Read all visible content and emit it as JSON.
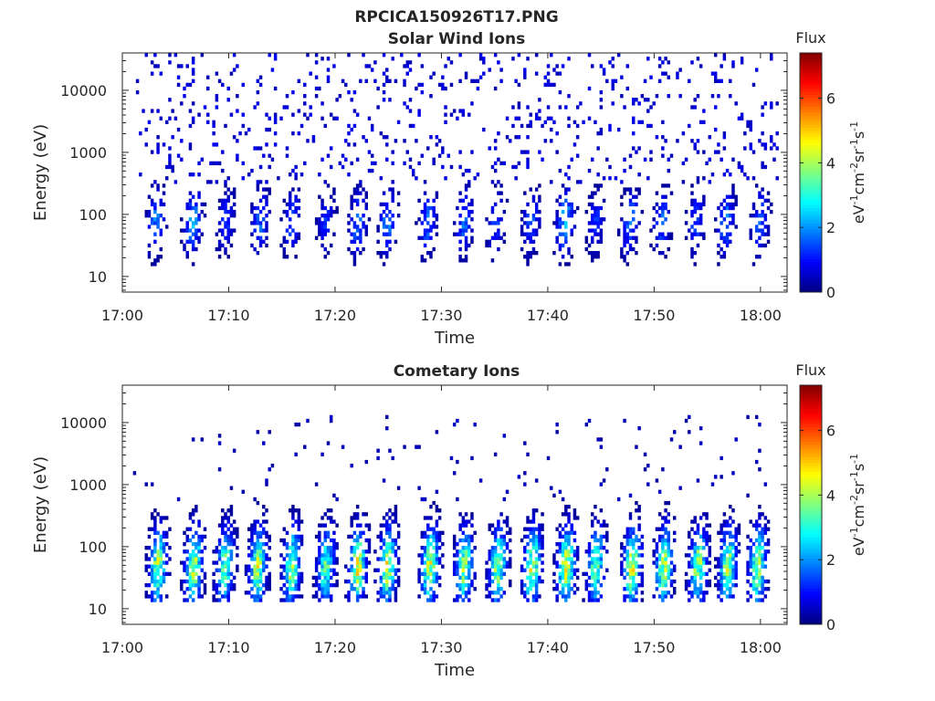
{
  "figure_title": "RPCICA150926T17.PNG",
  "chart_data": [
    {
      "type": "heatmap",
      "title": "Solar Wind Ions",
      "xlabel": "Time",
      "ylabel": "Energy (eV)",
      "xtick_labels": [
        "17:00",
        "17:10",
        "17:20",
        "17:30",
        "17:40",
        "17:50",
        "18:00"
      ],
      "xtick_minutes": [
        0,
        10,
        20,
        30,
        40,
        50,
        60
      ],
      "xlim_minutes": [
        0,
        62.5
      ],
      "ytick_labels": [
        "10",
        "100",
        "1000",
        "10000"
      ],
      "ytick_values": [
        10,
        100,
        1000,
        10000
      ],
      "ylim": [
        5.6,
        40000
      ],
      "yscale": "log",
      "colorbar": {
        "title": "Flux",
        "label": "eV-1cm-2sr-1s-1",
        "label_parts": [
          "eV",
          "-1",
          "cm",
          "-2",
          "sr",
          "-1",
          "s",
          "-1"
        ],
        "tick_labels": [
          "0",
          "2",
          "4",
          "6"
        ],
        "tick_values": [
          0,
          2,
          4,
          6
        ],
        "range": [
          0,
          7.4
        ],
        "colormap": "jet"
      },
      "data_window_minutes": [
        1.0,
        61.7
      ],
      "bursts": [
        {
          "t": 3.0,
          "flux": 2.2
        },
        {
          "t": 6.5,
          "flux": 2.6
        },
        {
          "t": 9.6,
          "flux": 1.6
        },
        {
          "t": 12.8,
          "flux": 2.0
        },
        {
          "t": 15.8,
          "flux": 1.8
        },
        {
          "t": 19.0,
          "flux": 1.5
        },
        {
          "t": 22.0,
          "flux": 2.2
        },
        {
          "t": 24.8,
          "flux": 2.3
        },
        {
          "t": 28.6,
          "flux": 2.1
        },
        {
          "t": 32.0,
          "flux": 2.0
        },
        {
          "t": 35.0,
          "flux": 1.7
        },
        {
          "t": 38.3,
          "flux": 1.9
        },
        {
          "t": 41.5,
          "flux": 3.0
        },
        {
          "t": 44.4,
          "flux": 1.5
        },
        {
          "t": 47.6,
          "flux": 2.2
        },
        {
          "t": 50.6,
          "flux": 2.0
        },
        {
          "t": 53.8,
          "flux": 1.8
        },
        {
          "t": 56.6,
          "flux": 2.2
        },
        {
          "t": 59.8,
          "flux": 2.0
        }
      ],
      "burst_energy_range_eV": [
        8,
        300
      ],
      "background_energy_range_eV": [
        300,
        40000
      ],
      "background_flux": 0.6
    },
    {
      "type": "heatmap",
      "title": "Cometary Ions",
      "xlabel": "Time",
      "ylabel": "Energy (eV)",
      "xtick_labels": [
        "17:00",
        "17:10",
        "17:20",
        "17:30",
        "17:40",
        "17:50",
        "18:00"
      ],
      "xtick_minutes": [
        0,
        10,
        20,
        30,
        40,
        50,
        60
      ],
      "xlim_minutes": [
        0,
        62.5
      ],
      "ytick_labels": [
        "10",
        "100",
        "1000",
        "10000"
      ],
      "ytick_values": [
        10,
        100,
        1000,
        10000
      ],
      "ylim": [
        5.6,
        40000
      ],
      "yscale": "log",
      "colorbar": {
        "title": "Flux",
        "label": "eV-1cm-2sr-1s-1",
        "label_parts": [
          "eV",
          "-1",
          "cm",
          "-2",
          "sr",
          "-1",
          "s",
          "-1"
        ],
        "tick_labels": [
          "0",
          "2",
          "4",
          "6"
        ],
        "tick_values": [
          0,
          2,
          4,
          6
        ],
        "range": [
          0,
          7.4
        ],
        "colormap": "jet"
      },
      "data_window_minutes": [
        1.0,
        61.7
      ],
      "bursts": [
        {
          "t": 3.2,
          "flux": 5.0
        },
        {
          "t": 6.6,
          "flux": 5.2
        },
        {
          "t": 9.5,
          "flux": 4.4
        },
        {
          "t": 12.6,
          "flux": 5.0
        },
        {
          "t": 15.8,
          "flux": 4.8
        },
        {
          "t": 19.0,
          "flux": 4.2
        },
        {
          "t": 22.0,
          "flux": 5.4
        },
        {
          "t": 24.8,
          "flux": 5.3
        },
        {
          "t": 28.8,
          "flux": 5.2
        },
        {
          "t": 32.0,
          "flux": 4.8
        },
        {
          "t": 35.2,
          "flux": 4.9
        },
        {
          "t": 38.4,
          "flux": 5.2
        },
        {
          "t": 41.6,
          "flux": 5.6
        },
        {
          "t": 44.4,
          "flux": 4.6
        },
        {
          "t": 47.8,
          "flux": 5.4
        },
        {
          "t": 50.8,
          "flux": 5.1
        },
        {
          "t": 54.0,
          "flux": 5.0
        },
        {
          "t": 56.8,
          "flux": 5.0
        },
        {
          "t": 59.6,
          "flux": 5.1
        }
      ],
      "burst_energy_range_eV": [
        12,
        500
      ],
      "burst_peak_energy_eV": 45,
      "background_energy_range_eV": [
        500,
        12000
      ],
      "background_flux": 0.4
    }
  ]
}
